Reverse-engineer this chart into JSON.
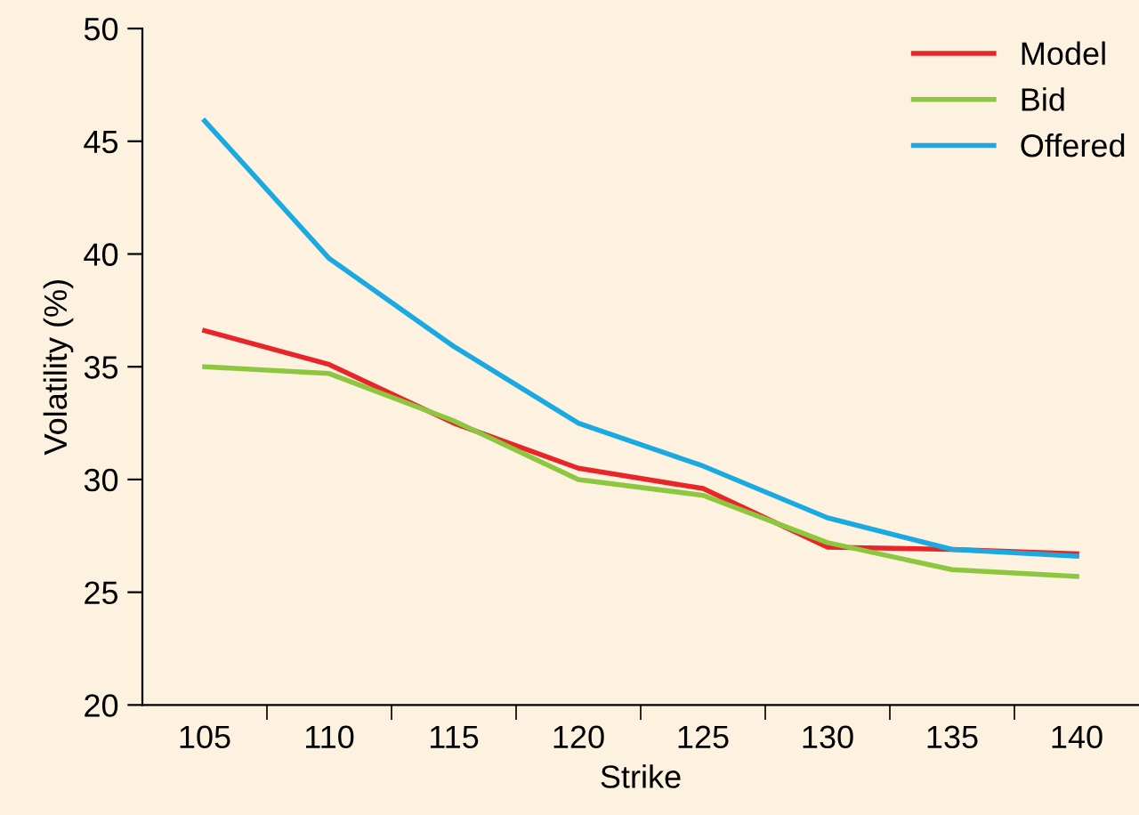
{
  "chart_data": {
    "type": "line",
    "xlabel": "Strike",
    "ylabel": "Volatility (%)",
    "categories": [
      "105",
      "110",
      "115",
      "120",
      "125",
      "130",
      "135",
      "140"
    ],
    "series": [
      {
        "name": "Model",
        "color": "#e8262a",
        "values": [
          36.6,
          35.1,
          32.5,
          30.5,
          29.6,
          27.0,
          26.9,
          26.7
        ]
      },
      {
        "name": "Bid",
        "color": "#8dc63f",
        "values": [
          35.0,
          34.7,
          32.6,
          30.0,
          29.3,
          27.2,
          26.0,
          25.7
        ]
      },
      {
        "name": "Offered",
        "color": "#1ba9e1",
        "values": [
          45.9,
          39.8,
          35.9,
          32.5,
          30.6,
          28.3,
          26.9,
          26.6
        ]
      }
    ],
    "ylim": [
      20,
      50
    ],
    "yticks": [
      20,
      25,
      30,
      35,
      40,
      45,
      50
    ],
    "grid": false,
    "legend": "top right",
    "marker": "none",
    "line_style": "solid"
  }
}
